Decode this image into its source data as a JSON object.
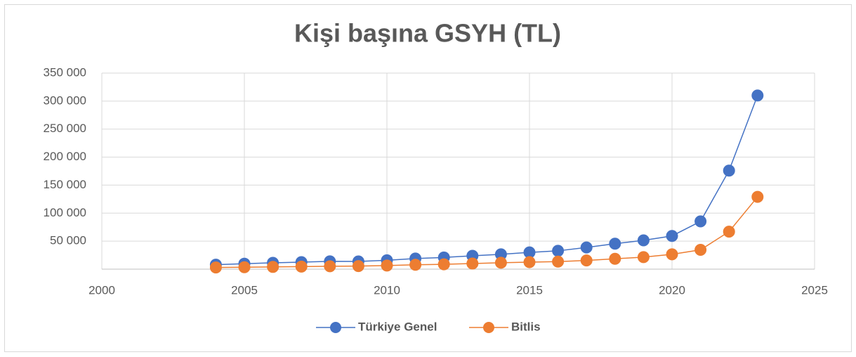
{
  "chart_data": {
    "type": "line",
    "title": "Kişi başına GSYH (TL)",
    "x": [
      2004,
      2005,
      2006,
      2007,
      2008,
      2009,
      2010,
      2011,
      2012,
      2013,
      2014,
      2015,
      2016,
      2017,
      2018,
      2019,
      2020,
      2021,
      2022,
      2023
    ],
    "series": [
      {
        "name": "Türkiye Genel",
        "color": "#4472c4",
        "values": [
          8000,
          9800,
          11300,
          12600,
          14000,
          13800,
          15800,
          19000,
          20900,
          23800,
          26500,
          29900,
          32700,
          38700,
          45500,
          51400,
          59300,
          85300,
          176000,
          310000
        ]
      },
      {
        "name": "Bitlis",
        "color": "#ed7d31",
        "values": [
          3000,
          3500,
          4000,
          4500,
          5200,
          5500,
          6500,
          7800,
          8700,
          10000,
          11500,
          12500,
          13500,
          15500,
          18500,
          21500,
          26500,
          34500,
          67000,
          129000
        ]
      }
    ],
    "xlim": [
      2000,
      2025
    ],
    "xticks": [
      2000,
      2005,
      2010,
      2015,
      2020,
      2025
    ],
    "ylim": [
      0,
      350000
    ],
    "yticks": [
      {
        "value": 50000,
        "label": "50 000"
      },
      {
        "value": 100000,
        "label": "100 000"
      },
      {
        "value": 150000,
        "label": "150 000"
      },
      {
        "value": 200000,
        "label": "200 000"
      },
      {
        "value": 250000,
        "label": "250 000"
      },
      {
        "value": 300000,
        "label": "300 000"
      },
      {
        "value": 350000,
        "label": "350 000"
      }
    ],
    "grid": true,
    "legend": "bottom"
  }
}
